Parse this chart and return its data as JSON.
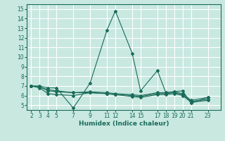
{
  "title": "",
  "xlabel": "Humidex (Indice chaleur)",
  "ylabel": "",
  "background_color": "#c8e8e0",
  "grid_color": "#ffffff",
  "line_color": "#1a6b5a",
  "xlim": [
    1.5,
    24.5
  ],
  "ylim": [
    4.5,
    15.5
  ],
  "yticks": [
    5,
    6,
    7,
    8,
    9,
    10,
    11,
    12,
    13,
    14,
    15
  ],
  "xticks": [
    2,
    3,
    4,
    5,
    7,
    9,
    11,
    12,
    14,
    15,
    17,
    18,
    19,
    20,
    21,
    23
  ],
  "lines": [
    {
      "x": [
        2,
        3,
        4,
        5,
        7,
        9,
        11,
        12,
        14,
        15,
        17,
        18,
        19,
        20,
        21,
        23
      ],
      "y": [
        7.0,
        7.0,
        6.8,
        6.8,
        4.7,
        7.3,
        12.8,
        14.8,
        10.4,
        6.5,
        8.6,
        6.3,
        6.4,
        6.5,
        5.2,
        5.8
      ]
    },
    {
      "x": [
        2,
        3,
        4,
        5,
        7,
        9,
        11,
        12,
        14,
        15,
        17,
        18,
        19,
        20,
        21,
        23
      ],
      "y": [
        7.0,
        6.9,
        6.6,
        6.5,
        6.3,
        6.4,
        6.3,
        6.2,
        6.1,
        6.0,
        6.3,
        6.3,
        6.4,
        6.2,
        5.5,
        5.8
      ]
    },
    {
      "x": [
        2,
        3,
        4,
        5,
        7,
        9,
        11,
        12,
        14,
        15,
        17,
        18,
        19,
        20,
        21,
        23
      ],
      "y": [
        7.0,
        6.9,
        6.5,
        6.4,
        6.3,
        6.3,
        6.2,
        6.1,
        6.0,
        5.9,
        6.2,
        6.2,
        6.3,
        6.1,
        5.4,
        5.6
      ]
    },
    {
      "x": [
        2,
        3,
        4,
        5,
        7,
        9,
        11,
        12,
        14,
        15,
        17,
        18,
        19,
        20,
        21,
        23
      ],
      "y": [
        7.0,
        6.8,
        6.2,
        6.1,
        6.0,
        6.3,
        6.2,
        6.1,
        5.9,
        5.8,
        6.1,
        6.1,
        6.2,
        6.0,
        5.3,
        5.5
      ]
    }
  ]
}
